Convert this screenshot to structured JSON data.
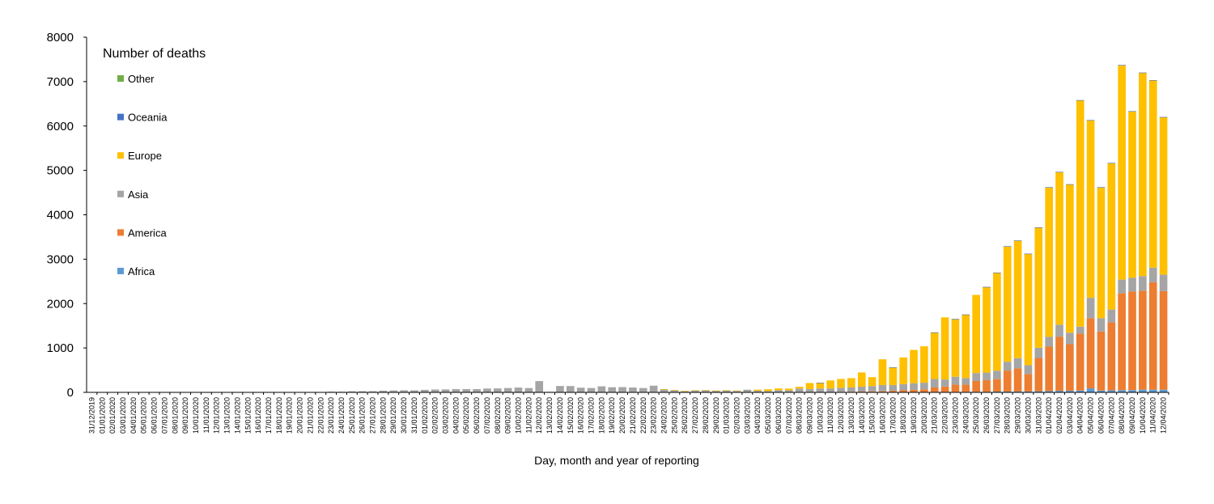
{
  "chart_data": {
    "type": "bar",
    "stacked": true,
    "title": "Number of deaths",
    "xlabel": "Day, month and year of reporting",
    "ylabel": "",
    "ylim": [
      0,
      8000
    ],
    "yticks": [
      0,
      1000,
      2000,
      3000,
      4000,
      5000,
      6000,
      7000,
      8000
    ],
    "grid": false,
    "legend_position": "top-left",
    "legend_order": [
      "Other",
      "Oceania",
      "Europe",
      "Asia",
      "America",
      "Africa"
    ],
    "categories": [
      "31/12/2019",
      "01/01/2020",
      "02/01/2020",
      "03/01/2020",
      "04/01/2020",
      "05/01/2020",
      "06/01/2020",
      "07/01/2020",
      "08/01/2020",
      "09/01/2020",
      "10/01/2020",
      "11/01/2020",
      "12/01/2020",
      "13/01/2020",
      "14/01/2020",
      "15/01/2020",
      "16/01/2020",
      "17/01/2020",
      "18/01/2020",
      "19/01/2020",
      "20/01/2020",
      "21/01/2020",
      "22/01/2020",
      "23/01/2020",
      "24/01/2020",
      "25/01/2020",
      "26/01/2020",
      "27/01/2020",
      "28/01/2020",
      "29/01/2020",
      "30/01/2020",
      "31/01/2020",
      "01/02/2020",
      "02/02/2020",
      "03/02/2020",
      "04/02/2020",
      "05/02/2020",
      "06/02/2020",
      "07/02/2020",
      "08/02/2020",
      "09/02/2020",
      "10/02/2020",
      "11/02/2020",
      "12/02/2020",
      "13/02/2020",
      "14/02/2020",
      "15/02/2020",
      "16/02/2020",
      "17/02/2020",
      "18/02/2020",
      "19/02/2020",
      "20/02/2020",
      "21/02/2020",
      "22/02/2020",
      "23/02/2020",
      "24/02/2020",
      "25/02/2020",
      "26/02/2020",
      "27/02/2020",
      "28/02/2020",
      "29/02/2020",
      "01/03/2020",
      "02/03/2020",
      "03/03/2020",
      "04/03/2020",
      "05/03/2020",
      "06/03/2020",
      "07/03/2020",
      "08/03/2020",
      "09/03/2020",
      "10/03/2020",
      "11/03/2020",
      "12/03/2020",
      "13/03/2020",
      "14/03/2020",
      "15/03/2020",
      "16/03/2020",
      "17/03/2020",
      "18/03/2020",
      "19/03/2020",
      "20/03/2020",
      "21/03/2020",
      "22/03/2020",
      "23/03/2020",
      "24/03/2020",
      "25/03/2020",
      "26/03/2020",
      "27/03/2020",
      "28/03/2020",
      "29/03/2020",
      "30/03/2020",
      "31/03/2020",
      "01/04/2020",
      "02/04/2020",
      "03/04/2020",
      "04/04/2020",
      "05/04/2020",
      "06/04/2020",
      "07/04/2020",
      "08/04/2020",
      "09/04/2020",
      "10/04/2020",
      "11/04/2020",
      "12/04/2020"
    ],
    "series": [
      {
        "name": "Africa",
        "color": "#5B9BD5",
        "values": [
          0,
          0,
          0,
          0,
          0,
          0,
          0,
          0,
          0,
          0,
          0,
          0,
          0,
          0,
          0,
          0,
          0,
          0,
          0,
          0,
          0,
          0,
          0,
          0,
          0,
          0,
          0,
          0,
          0,
          0,
          0,
          0,
          0,
          0,
          0,
          0,
          0,
          0,
          0,
          0,
          0,
          0,
          0,
          0,
          0,
          0,
          0,
          0,
          0,
          0,
          0,
          0,
          0,
          0,
          0,
          0,
          0,
          0,
          0,
          0,
          0,
          0,
          0,
          0,
          0,
          0,
          0,
          0,
          0,
          0,
          0,
          0,
          2,
          3,
          3,
          3,
          5,
          5,
          6,
          6,
          8,
          10,
          10,
          12,
          12,
          15,
          15,
          18,
          20,
          20,
          22,
          25,
          30,
          35,
          35,
          40,
          90,
          40,
          45,
          50,
          50,
          60,
          60,
          60
        ]
      },
      {
        "name": "America",
        "color": "#ED7D31",
        "values": [
          0,
          0,
          0,
          0,
          0,
          0,
          0,
          0,
          0,
          0,
          0,
          0,
          0,
          0,
          0,
          0,
          0,
          0,
          0,
          0,
          0,
          0,
          0,
          0,
          0,
          0,
          0,
          0,
          0,
          0,
          0,
          0,
          0,
          0,
          0,
          0,
          0,
          0,
          0,
          0,
          0,
          0,
          0,
          0,
          0,
          0,
          0,
          0,
          0,
          0,
          0,
          0,
          0,
          0,
          0,
          0,
          0,
          0,
          0,
          0,
          1,
          1,
          2,
          3,
          5,
          2,
          5,
          5,
          6,
          5,
          8,
          8,
          10,
          12,
          15,
          20,
          20,
          30,
          40,
          50,
          60,
          100,
          120,
          160,
          160,
          240,
          260,
          280,
          470,
          520,
          390,
          750,
          1000,
          1220,
          1050,
          1280,
          1580,
          1330,
          1530,
          2180,
          2220,
          2230,
          2420,
          2220
        ]
      },
      {
        "name": "Asia",
        "color": "#A5A5A5",
        "values": [
          0,
          0,
          0,
          0,
          0,
          0,
          0,
          0,
          0,
          0,
          0,
          1,
          0,
          0,
          0,
          0,
          1,
          0,
          0,
          0,
          0,
          3,
          8,
          16,
          15,
          24,
          26,
          26,
          38,
          43,
          46,
          45,
          57,
          64,
          66,
          73,
          73,
          73,
          86,
          89,
          97,
          108,
          97,
          254,
          13,
          143,
          142,
          105,
          98,
          136,
          115,
          118,
          109,
          97,
          150,
          71,
          52,
          29,
          44,
          47,
          35,
          42,
          31,
          38,
          31,
          28,
          44,
          40,
          80,
          70,
          80,
          80,
          90,
          95,
          110,
          120,
          140,
          130,
          140,
          150,
          150,
          190,
          160,
          180,
          150,
          180,
          170,
          190,
          200,
          230,
          200,
          230,
          220,
          270,
          260,
          160,
          460,
          300,
          290,
          310,
          310,
          330,
          330,
          370
        ]
      },
      {
        "name": "Europe",
        "color": "#FFC000",
        "values": [
          0,
          0,
          0,
          0,
          0,
          0,
          0,
          0,
          0,
          0,
          0,
          0,
          0,
          0,
          0,
          0,
          0,
          0,
          0,
          0,
          0,
          0,
          0,
          0,
          0,
          0,
          0,
          0,
          0,
          0,
          0,
          0,
          0,
          0,
          0,
          0,
          0,
          0,
          0,
          0,
          0,
          0,
          0,
          0,
          0,
          0,
          0,
          0,
          0,
          0,
          0,
          0,
          0,
          0,
          0,
          2,
          2,
          3,
          5,
          5,
          6,
          8,
          10,
          15,
          25,
          40,
          40,
          40,
          40,
          135,
          130,
          180,
          200,
          210,
          320,
          200,
          580,
          400,
          600,
          750,
          820,
          1050,
          1400,
          1300,
          1430,
          1760,
          1930,
          2210,
          2600,
          2650,
          2510,
          2710,
          3370,
          3440,
          3340,
          5100,
          4000,
          2950,
          3300,
          4830,
          3750,
          4580,
          4220,
          3550
        ]
      },
      {
        "name": "Oceania",
        "color": "#4472C4",
        "values": [
          0,
          0,
          0,
          0,
          0,
          0,
          0,
          0,
          0,
          0,
          0,
          0,
          0,
          0,
          0,
          0,
          0,
          0,
          0,
          0,
          0,
          0,
          0,
          0,
          0,
          0,
          0,
          0,
          0,
          0,
          0,
          0,
          0,
          0,
          0,
          0,
          0,
          0,
          0,
          0,
          0,
          0,
          0,
          0,
          0,
          0,
          0,
          0,
          0,
          0,
          0,
          0,
          0,
          0,
          0,
          0,
          0,
          0,
          0,
          0,
          0,
          0,
          0,
          1,
          0,
          0,
          0,
          0,
          0,
          0,
          1,
          0,
          0,
          0,
          0,
          0,
          0,
          1,
          0,
          0,
          0,
          1,
          0,
          1,
          2,
          0,
          1,
          1,
          2,
          1,
          2,
          2,
          2,
          2,
          3,
          3,
          4,
          3,
          4,
          4,
          4,
          4,
          4,
          3
        ]
      },
      {
        "name": "Other",
        "color": "#70AD47",
        "values": [
          0,
          0,
          0,
          0,
          0,
          0,
          0,
          0,
          0,
          0,
          0,
          0,
          0,
          0,
          0,
          0,
          0,
          0,
          0,
          0,
          0,
          0,
          0,
          0,
          0,
          0,
          0,
          0,
          0,
          0,
          0,
          0,
          0,
          0,
          0,
          0,
          0,
          0,
          0,
          0,
          0,
          0,
          0,
          0,
          0,
          0,
          0,
          0,
          0,
          0,
          0,
          0,
          0,
          0,
          0,
          0,
          0,
          0,
          0,
          0,
          0,
          0,
          0,
          0,
          0,
          0,
          0,
          0,
          0,
          0,
          0,
          0,
          0,
          0,
          0,
          0,
          0,
          0,
          0,
          0,
          0,
          0,
          0,
          0,
          0,
          0,
          0,
          0,
          0,
          0,
          0,
          0,
          0,
          0,
          0,
          0,
          0,
          0,
          0,
          0,
          0,
          0,
          0,
          0
        ]
      }
    ]
  }
}
